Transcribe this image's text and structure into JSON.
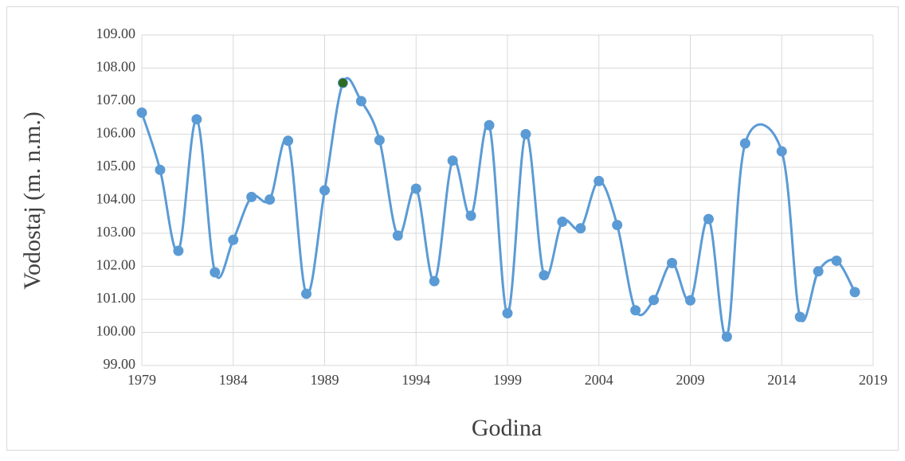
{
  "chart_data": {
    "type": "line",
    "x_label": "Godina",
    "y_label": "Vodostaj (m. n.m.)",
    "x": [
      1979,
      1980,
      1981,
      1982,
      1983,
      1984,
      1985,
      1986,
      1987,
      1988,
      1989,
      1990,
      1991,
      1992,
      1993,
      1994,
      1995,
      1996,
      1997,
      1998,
      1999,
      2000,
      2001,
      2002,
      2003,
      2004,
      2005,
      2006,
      2007,
      2008,
      2009,
      2010,
      2011,
      2012,
      2014,
      2015,
      2016,
      2017,
      2018
    ],
    "series": [
      {
        "color": "#5b9bd5",
        "values": [
          106.65,
          104.92,
          102.47,
          106.45,
          101.82,
          102.8,
          104.1,
          104.02,
          105.8,
          101.17,
          104.3,
          107.55,
          107.0,
          105.82,
          102.93,
          104.35,
          101.55,
          105.2,
          103.53,
          106.27,
          100.58,
          106.0,
          101.73,
          103.35,
          103.15,
          104.58,
          103.25,
          100.67,
          100.98,
          102.1,
          100.97,
          103.43,
          99.87,
          105.72,
          105.48,
          100.47,
          101.85,
          102.17,
          101.22
        ]
      }
    ],
    "highlight_index": 11,
    "highlight_color": "#2f6b1f",
    "xlim": [
      1979,
      2019
    ],
    "xticks": [
      1979,
      1984,
      1989,
      1994,
      1999,
      2004,
      2009,
      2014,
      2019
    ],
    "ylim": [
      99,
      109
    ],
    "yticks": [
      {
        "value": 99,
        "label": "99.00"
      },
      {
        "value": 100,
        "label": "100.00"
      },
      {
        "value": 101,
        "label": "101.00"
      },
      {
        "value": 102,
        "label": "102.00"
      },
      {
        "value": 103,
        "label": "103.00"
      },
      {
        "value": 104,
        "label": "104.00"
      },
      {
        "value": 105,
        "label": "105.00"
      },
      {
        "value": 106,
        "label": "106.00"
      },
      {
        "value": 107,
        "label": "107.00"
      },
      {
        "value": 108,
        "label": "108.00"
      },
      {
        "value": 109,
        "label": "109.00"
      }
    ],
    "grid": true
  }
}
